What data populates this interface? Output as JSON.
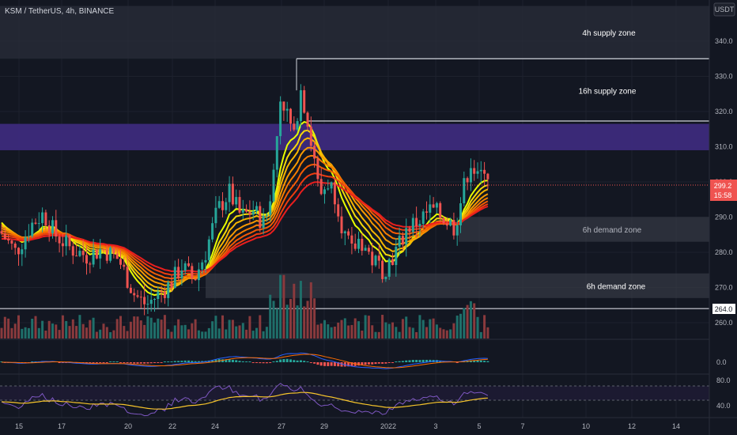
{
  "symbol_title": "KSM / TetherUS, 4h, BINANCE",
  "currency": "USDT",
  "price_axis": {
    "ticks": [
      340,
      330,
      320,
      310,
      300,
      290,
      280,
      270,
      260
    ],
    "tick_labels": [
      "340.0",
      "330.0",
      "320.0",
      "310.0",
      "300.0",
      "290.0",
      "280.0",
      "270.0",
      "260.0"
    ],
    "current_price_label": "299.2",
    "countdown_label": "15:58",
    "level_label": "264.0"
  },
  "time_axis": {
    "labels": [
      "15",
      "17",
      "20",
      "22",
      "24",
      "27",
      "29",
      "2022",
      "3",
      "5",
      "7",
      "10",
      "12",
      "14"
    ]
  },
  "zones": [
    {
      "label": "4h supply zone",
      "low": 335,
      "high": 350
    },
    {
      "label": "16h supply zone",
      "low": 317,
      "high": 335
    },
    {
      "label": "",
      "low": 309,
      "high": 316.5
    },
    {
      "label": "6h demand zone",
      "low": 283,
      "high": 290
    },
    {
      "label": "6h demand zone",
      "low": 267,
      "high": 274
    }
  ],
  "levels": [
    {
      "price": 335,
      "color": "#d1d4dc"
    },
    {
      "price": 317.3,
      "color": "#d1d4dc"
    },
    {
      "price": 264.0,
      "color": "#d1d4dc"
    }
  ],
  "macd_axis_label": "0.0",
  "rsi_axis_labels": [
    "80.0",
    "40.0"
  ],
  "colors": {
    "up": "#26a69a",
    "down": "#ef5350",
    "purple_zone": "#3c2a7c",
    "supply_zone": "#2a2e39",
    "demand_zone": "#363a45"
  },
  "chart_data": {
    "type": "candlestick",
    "interval": "4h",
    "ohlc_source": "approximate, read from chart",
    "close_path": [
      {
        "t": 0,
        "c": 286
      },
      {
        "t": 20,
        "c": 280
      },
      {
        "t": 40,
        "c": 288
      },
      {
        "t": 55,
        "c": 291
      },
      {
        "t": 70,
        "c": 285
      },
      {
        "t": 90,
        "c": 281
      },
      {
        "t": 110,
        "c": 279
      },
      {
        "t": 130,
        "c": 281
      },
      {
        "t": 150,
        "c": 278
      },
      {
        "t": 170,
        "c": 268
      },
      {
        "t": 185,
        "c": 265
      },
      {
        "t": 200,
        "c": 268
      },
      {
        "t": 215,
        "c": 271
      },
      {
        "t": 230,
        "c": 276
      },
      {
        "t": 245,
        "c": 272
      },
      {
        "t": 260,
        "c": 280
      },
      {
        "t": 275,
        "c": 292
      },
      {
        "t": 290,
        "c": 297
      },
      {
        "t": 305,
        "c": 290
      },
      {
        "t": 320,
        "c": 292
      },
      {
        "t": 335,
        "c": 288
      },
      {
        "t": 345,
        "c": 300
      },
      {
        "t": 355,
        "c": 325
      },
      {
        "t": 365,
        "c": 318
      },
      {
        "t": 372,
        "c": 312
      },
      {
        "t": 380,
        "c": 328
      },
      {
        "t": 388,
        "c": 318
      },
      {
        "t": 396,
        "c": 308
      },
      {
        "t": 404,
        "c": 296
      },
      {
        "t": 415,
        "c": 300
      },
      {
        "t": 425,
        "c": 296
      },
      {
        "t": 435,
        "c": 285
      },
      {
        "t": 445,
        "c": 280
      },
      {
        "t": 455,
        "c": 284
      },
      {
        "t": 470,
        "c": 278
      },
      {
        "t": 485,
        "c": 275
      },
      {
        "t": 500,
        "c": 280
      },
      {
        "t": 515,
        "c": 287
      },
      {
        "t": 530,
        "c": 289
      },
      {
        "t": 545,
        "c": 292
      },
      {
        "t": 560,
        "c": 290
      },
      {
        "t": 575,
        "c": 287
      },
      {
        "t": 585,
        "c": 297
      },
      {
        "t": 595,
        "c": 306
      },
      {
        "t": 605,
        "c": 300
      },
      {
        "t": 613,
        "c": 305
      },
      {
        "t": 621,
        "c": 299.2
      }
    ],
    "ema_ribbon": {
      "count": 8,
      "colors": [
        "#e8ff00",
        "#f5d90a",
        "#f7b500",
        "#f79a00",
        "#f57c00",
        "#f25c05",
        "#ef3d0f",
        "#e91e1e"
      ]
    },
    "current_price": 299.2,
    "ylim": [
      255,
      352
    ]
  }
}
